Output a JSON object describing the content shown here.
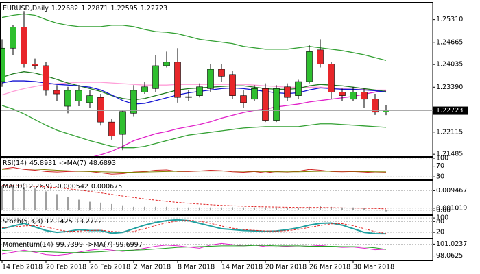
{
  "chart_data": [
    {
      "type": "candlestick",
      "title": "EURUSD,Daily",
      "categories": [
        "14 Feb 2018",
        null,
        null,
        null,
        "20 Feb 2018",
        null,
        null,
        null,
        "26 Feb 2018",
        null,
        null,
        null,
        "2 Mar 2018",
        null,
        null,
        null,
        "8 Mar 2018",
        null,
        null,
        null,
        "14 Mar 2018",
        null,
        null,
        null,
        "20 Mar 2018",
        null,
        null,
        null,
        "26 Mar 2018",
        null,
        null,
        null,
        "30 Mar 2018",
        null,
        null,
        null
      ],
      "open": [
        1.2355,
        1.245,
        1.251,
        1.2405,
        1.24,
        1.233,
        1.2285,
        1.23,
        1.2295,
        1.231,
        1.224,
        1.2205,
        1.2265,
        1.2325,
        1.2335,
        1.24,
        1.241,
        1.231,
        1.2315,
        1.2335,
        1.239,
        1.2375,
        1.2315,
        1.2305,
        1.2335,
        1.2245,
        1.234,
        1.2315,
        1.2355,
        1.2445,
        1.2405,
        1.2325,
        1.2305,
        1.2325,
        1.2305,
        1.22682
      ],
      "high": [
        1.2475,
        1.2515,
        1.2555,
        1.242,
        1.241,
        1.2345,
        1.234,
        1.2345,
        1.233,
        1.232,
        1.225,
        1.2275,
        1.2345,
        1.2355,
        1.243,
        1.244,
        1.245,
        1.233,
        1.235,
        1.2405,
        1.2405,
        1.2385,
        1.233,
        1.2345,
        1.235,
        1.2345,
        1.235,
        1.236,
        1.246,
        1.2475,
        1.241,
        1.2335,
        1.234,
        1.2335,
        1.232,
        1.22871
      ],
      "low": [
        1.234,
        1.243,
        1.2395,
        1.239,
        1.2315,
        1.23,
        1.2265,
        1.2285,
        1.228,
        1.223,
        1.219,
        1.216,
        1.2255,
        1.232,
        1.2325,
        1.2395,
        1.2295,
        1.23,
        1.231,
        1.2325,
        1.2355,
        1.2305,
        1.228,
        1.23,
        1.224,
        1.224,
        1.23,
        1.2305,
        1.235,
        1.2395,
        1.2305,
        1.23,
        1.23,
        1.228,
        1.226,
        1.22595
      ],
      "close": [
        1.245,
        1.251,
        1.2405,
        1.24,
        1.233,
        1.232,
        1.233,
        1.233,
        1.2315,
        1.224,
        1.22,
        1.227,
        1.233,
        1.234,
        1.24,
        1.241,
        1.231,
        1.2312,
        1.234,
        1.239,
        1.237,
        1.2315,
        1.2295,
        1.2335,
        1.2245,
        1.2335,
        1.231,
        1.2355,
        1.244,
        1.2405,
        1.2325,
        1.2315,
        1.2325,
        1.2305,
        1.2268,
        1.22723
      ],
      "up_color": "#2fbf2f",
      "down_color": "#e8262a",
      "series": [
        {
          "color": "#33a033",
          "values": [
            1.2537,
            1.2543,
            1.2547,
            1.2543,
            1.2531,
            1.2521,
            1.2515,
            1.2511,
            1.2511,
            1.2511,
            1.2515,
            1.2515,
            1.2511,
            1.2503,
            1.2497,
            1.2495,
            1.2491,
            1.2483,
            1.2475,
            1.2471,
            1.2467,
            1.2463,
            1.2455,
            1.2451,
            1.2447,
            1.2447,
            1.2447,
            1.2451,
            1.2455,
            1.2451,
            1.2447,
            1.2443,
            1.2437,
            1.2431,
            1.2423,
            1.2415
          ]
        },
        {
          "color": "#33a033",
          "values": [
            1.2287,
            1.2277,
            1.2263,
            1.2247,
            1.2231,
            1.2217,
            1.2207,
            1.2197,
            1.2187,
            1.2179,
            1.2171,
            1.2167,
            1.2167,
            1.2171,
            1.2179,
            1.2187,
            1.2195,
            1.2203,
            1.2207,
            1.2211,
            1.2215,
            1.2219,
            1.2223,
            1.2225,
            1.2227,
            1.2227,
            1.2227,
            1.2227,
            1.2231,
            1.2235,
            1.2235,
            1.2233,
            1.2231,
            1.2229,
            1.2227,
            1.2225
          ]
        },
        {
          "color": "#ff9ed8",
          "values": [
            1.2317,
            1.2327,
            1.2335,
            1.2341,
            1.2347,
            1.2349,
            1.2351,
            1.2353,
            1.2353,
            1.2353,
            1.2351,
            1.2349,
            1.2347,
            1.2345,
            1.2345,
            1.2345,
            1.2347,
            1.2347,
            1.2347,
            1.2347,
            1.2347,
            1.2347,
            1.2347,
            1.2345,
            1.2343,
            1.2341,
            1.2339,
            1.2339,
            1.2339,
            1.2339,
            1.2337,
            1.2335,
            1.2333,
            1.2333,
            1.2331,
            1.2331
          ]
        },
        {
          "color": "#e020c8",
          "values": [
            null,
            null,
            null,
            null,
            null,
            null,
            null,
            1.2131,
            1.2139,
            1.2147,
            1.2157,
            1.2171,
            1.2187,
            1.2197,
            1.2207,
            1.2213,
            1.2221,
            1.2227,
            1.2233,
            1.2241,
            1.2251,
            1.2259,
            1.2267,
            1.2273,
            1.2277,
            1.2283,
            1.2287,
            1.2291,
            1.2297,
            1.2301,
            1.2305,
            1.2309,
            1.2313,
            1.2319,
            1.2325,
            1.2329
          ]
        },
        {
          "color": "#1e7a1e",
          "values": [
            1.2367,
            1.2377,
            1.2383,
            1.2379,
            1.2371,
            1.2361,
            1.2351,
            1.2343,
            1.2335,
            1.2327,
            1.2315,
            1.2307,
            1.2303,
            1.2307,
            1.2315,
            1.2323,
            1.2331,
            1.2335,
            1.2337,
            1.2339,
            1.2341,
            1.2343,
            1.2343,
            1.2339,
            1.2335,
            1.2333,
            1.2333,
            1.2335,
            1.2343,
            1.2347,
            1.2345,
            1.2343,
            1.2339,
            1.2335,
            1.2331,
            1.2327
          ]
        },
        {
          "color": "#1414d2",
          "values": [
            1.2351,
            1.2357,
            1.2357,
            1.2355,
            1.2351,
            1.2347,
            1.2345,
            1.2343,
            1.2339,
            1.2331,
            1.2317,
            1.2301,
            1.2291,
            1.2293,
            1.2301,
            1.2309,
            1.2317,
            1.2323,
            1.2327,
            1.2331,
            1.2335,
            1.2337,
            1.2335,
            1.2331,
            1.2327,
            1.2323,
            1.2321,
            1.2323,
            1.2331,
            1.2337,
            1.2335,
            1.2333,
            1.2333,
            1.2331,
            1.2329,
            1.2325
          ]
        }
      ],
      "ylim": [
        1.2143,
        1.2577
      ],
      "yticks": [
        {
          "value": 1.2531,
          "label": "1.25310"
        },
        1.24665,
        1.24035,
        {
          "value": 1.2339,
          "label": "1.23390"
        },
        1.22115,
        1.21485
      ],
      "grid": false
    },
    {
      "type": "line",
      "title": "RSI(14)",
      "series": [
        {
          "color": "#d02020",
          "values": [
            60,
            65,
            58,
            55,
            50,
            48,
            50,
            51,
            50,
            45,
            40,
            42,
            48,
            50,
            55,
            56,
            50,
            50,
            52,
            55,
            53,
            49,
            47,
            50,
            45,
            50,
            48,
            51,
            58,
            55,
            50,
            49,
            50,
            48,
            45,
            45.8931
          ]
        },
        {
          "name": "->MA(7)",
          "color": "#808000",
          "values": [
            58,
            60,
            60,
            59,
            57,
            55,
            53,
            51,
            50,
            49,
            48,
            47,
            47,
            48,
            49,
            50,
            51,
            52,
            52,
            52,
            52,
            52,
            51,
            51,
            50,
            49,
            49,
            49,
            50,
            51,
            51,
            52,
            51,
            50,
            49,
            48.6893
          ]
        }
      ],
      "ylim": [
        20,
        100
      ],
      "yticks": [
        100,
        70,
        30
      ],
      "grid": true
    },
    {
      "type": "line",
      "title": "MACD(12,26,9)",
      "series": [
        {
          "kind": "bar",
          "color": "#a0a0a0",
          "values": [
            0.0118,
            0.0118,
            0.0112,
            0.0105,
            0.0091,
            0.0078,
            0.0064,
            0.0051,
            0.0041,
            0.0037,
            0.003,
            0.0024,
            0.0017,
            0.0017,
            0.0017,
            0.0017,
            0.0014,
            0.0014,
            0.0014,
            0.0014,
            0.0014,
            0.0015,
            0.0014,
            0.0014,
            0.0014,
            0.0013,
            0.0013,
            0.0014,
            0.0017,
            0.002,
            0.0017,
            0.0014,
            0.0014,
            0.001,
            0.0003,
            -0.000542
          ]
        },
        {
          "dash": true,
          "color": "#e02020",
          "values": [
            0.012,
            0.0119,
            0.0118,
            0.0116,
            0.0113,
            0.0109,
            0.0104,
            0.0098,
            0.0091,
            0.0084,
            0.0077,
            0.0069,
            0.0062,
            0.0055,
            0.0049,
            0.0043,
            0.0038,
            0.0034,
            0.003,
            0.0027,
            0.0024,
            0.0022,
            0.002,
            0.0018,
            0.0017,
            0.0016,
            0.0015,
            0.0014,
            0.0014,
            0.0014,
            0.0013,
            0.0012,
            0.0011,
            0.001,
            0.0009,
            0.000675
          ]
        }
      ],
      "ylim": [
        -0.002,
        0.0139
      ],
      "yticks": [
        0.009467,
        0.001019,
        {
          "value": 0,
          "label": "0.00"
        }
      ],
      "grid": true
    },
    {
      "type": "line",
      "title": "Stoch(5,3,3)",
      "series": [
        {
          "color": "#20a0a0",
          "width": 2,
          "values": [
            40,
            55,
            70,
            50,
            30,
            20,
            25,
            35,
            30,
            30,
            15,
            20,
            40,
            60,
            75,
            85,
            90,
            85,
            70,
            55,
            40,
            35,
            30,
            28,
            25,
            27,
            35,
            45,
            60,
            70,
            72,
            60,
            40,
            20,
            13,
            12.1425
          ]
        },
        {
          "dash": true,
          "color": "#e02020",
          "values": [
            45,
            50,
            55,
            58,
            50,
            35,
            25,
            27,
            30,
            32,
            25,
            22,
            25,
            40,
            58,
            73,
            83,
            87,
            82,
            70,
            55,
            43,
            35,
            31,
            28,
            27,
            29,
            36,
            47,
            58,
            67,
            68,
            57,
            40,
            24,
            13.2722
          ]
        }
      ],
      "ylim": [
        -10,
        108
      ],
      "yticks": [
        100,
        80,
        20
      ],
      "grid": true
    },
    {
      "type": "line",
      "title": "Momentum(14)",
      "series": [
        {
          "color": "#e020c8",
          "values": [
            98.5,
            99,
            99.5,
            99,
            98.4,
            98.2,
            98.5,
            99,
            99.5,
            99.8,
            99.5,
            99.2,
            99.5,
            100,
            100.5,
            100.8,
            100.6,
            100.3,
            100,
            100.8,
            101.2,
            100.9,
            100.6,
            100.8,
            100.4,
            100.3,
            100.5,
            100.6,
            100.5,
            100.7,
            100.4,
            100.2,
            100.3,
            100,
            99.6,
            99.7399
          ]
        },
        {
          "name": "->MA(7)",
          "color": "#20a020",
          "values": [
            99.5,
            99.3,
            99.2,
            99.2,
            99.1,
            99,
            98.9,
            98.9,
            99,
            99.1,
            99.3,
            99.4,
            99.5,
            99.6,
            99.8,
            100,
            100.2,
            100.3,
            100.4,
            100.5,
            100.6,
            100.6,
            100.6,
            100.7,
            100.7,
            100.6,
            100.6,
            100.6,
            100.5,
            100.5,
            100.5,
            100.4,
            100.4,
            100.3,
            100.1,
            99.6997
          ]
        }
      ],
      "ylim": [
        96.95,
        102.13
      ],
      "yticks": [
        101.0237,
        98.0625
      ],
      "grid": true
    }
  ]
}
